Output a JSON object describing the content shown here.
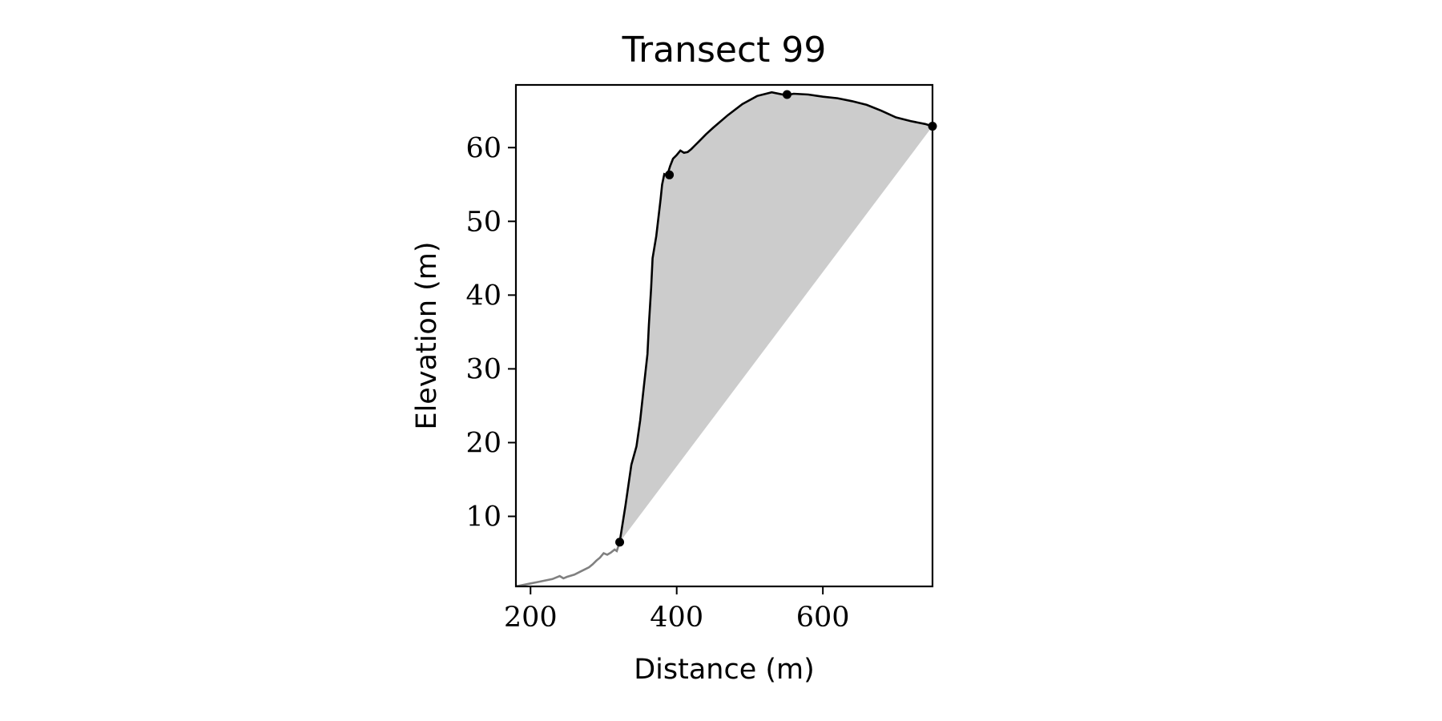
{
  "chart_data": {
    "type": "line",
    "title": "Transect 99",
    "xlabel": "Distance (m)",
    "ylabel": "Elevation (m)",
    "xlim": [
      180,
      750
    ],
    "ylim": [
      0.5,
      68.5
    ],
    "xticks": [
      200,
      400,
      600
    ],
    "yticks": [
      10,
      20,
      30,
      40,
      50,
      60
    ],
    "grid": false,
    "colors": {
      "profile": "#000000",
      "lower_profile": "#808080",
      "fill": "#cccccc",
      "markers": "#000000"
    },
    "series": [
      {
        "role": "lower-profile",
        "x": [
          180,
          190,
          200,
          210,
          220,
          230,
          240,
          245,
          250,
          260,
          270,
          280,
          285,
          290,
          295,
          300,
          305,
          310,
          315,
          318,
          322
        ],
        "y": [
          0.5,
          0.7,
          0.9,
          1.1,
          1.3,
          1.5,
          1.9,
          1.6,
          1.8,
          2.1,
          2.6,
          3.1,
          3.5,
          4.0,
          4.4,
          5.0,
          4.8,
          5.1,
          5.5,
          5.3,
          6.5
        ]
      },
      {
        "role": "cliff-profile",
        "x": [
          322,
          330,
          338,
          345,
          350,
          355,
          360,
          362,
          365,
          367,
          372,
          375,
          378,
          380,
          383,
          387,
          391,
          395,
          400,
          405,
          410,
          415,
          420,
          425,
          430,
          440,
          450,
          470,
          490,
          510,
          530,
          550,
          560,
          580,
          600,
          620,
          640,
          660,
          680,
          700,
          720,
          730,
          740,
          750
        ],
        "y": [
          6.5,
          11.5,
          17.0,
          19.5,
          23.0,
          27.5,
          32.0,
          36.0,
          41.0,
          45.0,
          48.0,
          50.5,
          53.0,
          55.0,
          56.4,
          56.2,
          57.5,
          58.5,
          59.0,
          59.6,
          59.3,
          59.4,
          59.8,
          60.3,
          60.8,
          61.8,
          62.7,
          64.4,
          65.9,
          67.0,
          67.5,
          67.1,
          67.3,
          67.2,
          66.9,
          66.7,
          66.3,
          65.8,
          65.0,
          64.1,
          63.6,
          63.4,
          63.2,
          62.9
        ]
      }
    ],
    "fill_polygon": {
      "x": [
        322,
        330,
        338,
        345,
        350,
        355,
        360,
        362,
        365,
        367,
        372,
        375,
        378,
        380,
        383,
        387,
        391,
        395,
        400,
        405,
        410,
        415,
        420,
        425,
        430,
        440,
        450,
        470,
        490,
        510,
        530,
        550,
        560,
        580,
        600,
        620,
        640,
        660,
        680,
        700,
        720,
        730,
        740,
        750
      ],
      "y": [
        6.5,
        11.5,
        17.0,
        19.5,
        23.0,
        27.5,
        32.0,
        36.0,
        41.0,
        45.0,
        48.0,
        50.5,
        53.0,
        55.0,
        56.4,
        56.2,
        57.5,
        58.5,
        59.0,
        59.6,
        59.3,
        59.4,
        59.8,
        60.3,
        60.8,
        61.8,
        62.7,
        64.4,
        65.9,
        67.0,
        67.5,
        67.1,
        67.3,
        67.2,
        66.9,
        66.7,
        66.3,
        65.8,
        65.0,
        64.1,
        63.6,
        63.4,
        63.2,
        62.9
      ]
    },
    "markers": [
      {
        "x": 322,
        "y": 6.5
      },
      {
        "x": 390,
        "y": 56.3
      },
      {
        "x": 551,
        "y": 67.2
      },
      {
        "x": 750,
        "y": 62.9
      }
    ]
  }
}
